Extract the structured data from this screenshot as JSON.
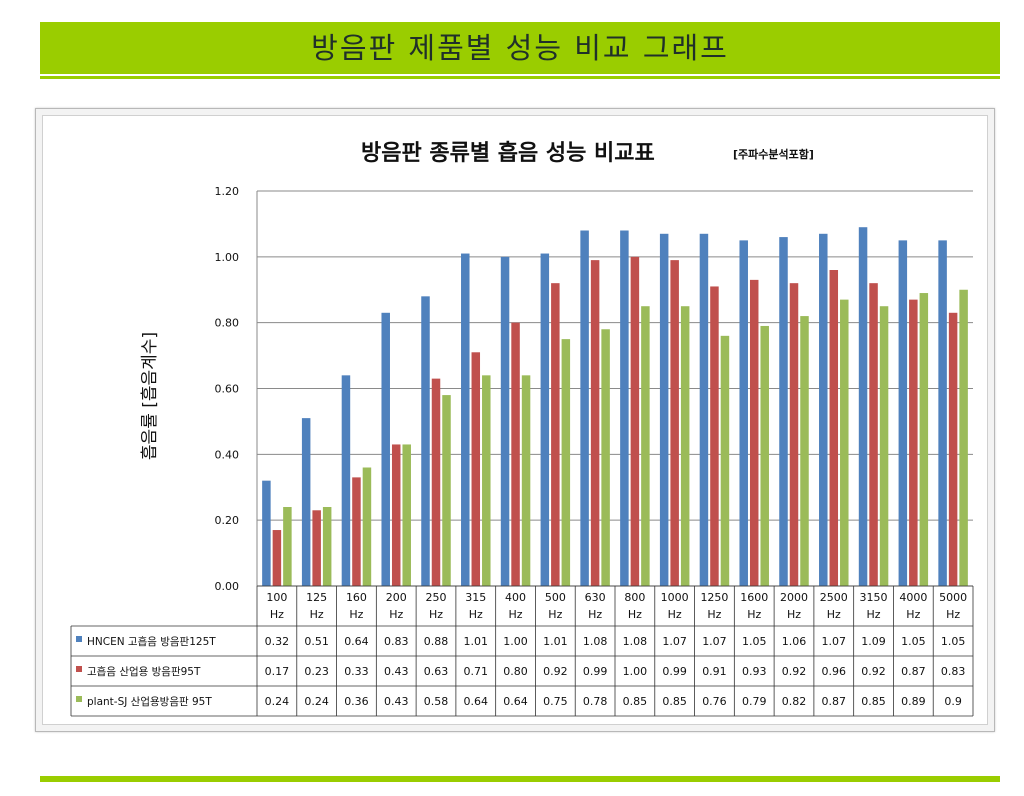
{
  "page": {
    "banner_title": "방음판 제품별 성능 비교 그래프"
  },
  "chart_data": {
    "type": "bar",
    "title": "방음판 종류별 흡음 성능 비교표",
    "subtitle": "[주파수분석포함]",
    "ylabel": "흡음률 [흡음계수]",
    "xlabel": "",
    "ylim": [
      0,
      1.2
    ],
    "yticks": [
      "0.00",
      "0.20",
      "0.40",
      "0.60",
      "0.80",
      "1.00",
      "1.20"
    ],
    "grid": true,
    "legend": "data-table-left",
    "categories": [
      "100",
      "125",
      "160",
      "200",
      "250",
      "315",
      "400",
      "500",
      "630",
      "800",
      "1000",
      "1250",
      "1600",
      "2000",
      "2500",
      "3150",
      "4000",
      "5000"
    ],
    "unit": "Hz",
    "series": [
      {
        "name": "HNCEN 고흡음 방음판125T",
        "color": "#4f81bd",
        "values": [
          0.32,
          0.51,
          0.64,
          0.83,
          0.88,
          1.01,
          1.0,
          1.01,
          1.08,
          1.08,
          1.07,
          1.07,
          1.05,
          1.06,
          1.07,
          1.09,
          1.05,
          1.05
        ],
        "labels": [
          "0.32",
          "0.51",
          "0.64",
          "0.83",
          "0.88",
          "1.01",
          "1.00",
          "1.01",
          "1.08",
          "1.08",
          "1.07",
          "1.07",
          "1.05",
          "1.06",
          "1.07",
          "1.09",
          "1.05",
          "1.05"
        ]
      },
      {
        "name": "고흡음 산업용 방음판95T",
        "color": "#c0504d",
        "values": [
          0.17,
          0.23,
          0.33,
          0.43,
          0.63,
          0.71,
          0.8,
          0.92,
          0.99,
          1.0,
          0.99,
          0.91,
          0.93,
          0.92,
          0.96,
          0.92,
          0.87,
          0.83
        ],
        "labels": [
          "0.17",
          "0.23",
          "0.33",
          "0.43",
          "0.63",
          "0.71",
          "0.80",
          "0.92",
          "0.99",
          "1.00",
          "0.99",
          "0.91",
          "0.93",
          "0.92",
          "0.96",
          "0.92",
          "0.87",
          "0.83"
        ]
      },
      {
        "name": "plant-SJ 산업용방음판 95T",
        "color": "#9bbb59",
        "values": [
          0.24,
          0.24,
          0.36,
          0.43,
          0.58,
          0.64,
          0.64,
          0.75,
          0.78,
          0.85,
          0.85,
          0.76,
          0.79,
          0.82,
          0.87,
          0.85,
          0.89,
          0.9
        ],
        "labels": [
          "0.24",
          "0.24",
          "0.36",
          "0.43",
          "0.58",
          "0.64",
          "0.64",
          "0.75",
          "0.78",
          "0.85",
          "0.85",
          "0.76",
          "0.79",
          "0.82",
          "0.87",
          "0.85",
          "0.89",
          "0.9"
        ]
      }
    ]
  }
}
